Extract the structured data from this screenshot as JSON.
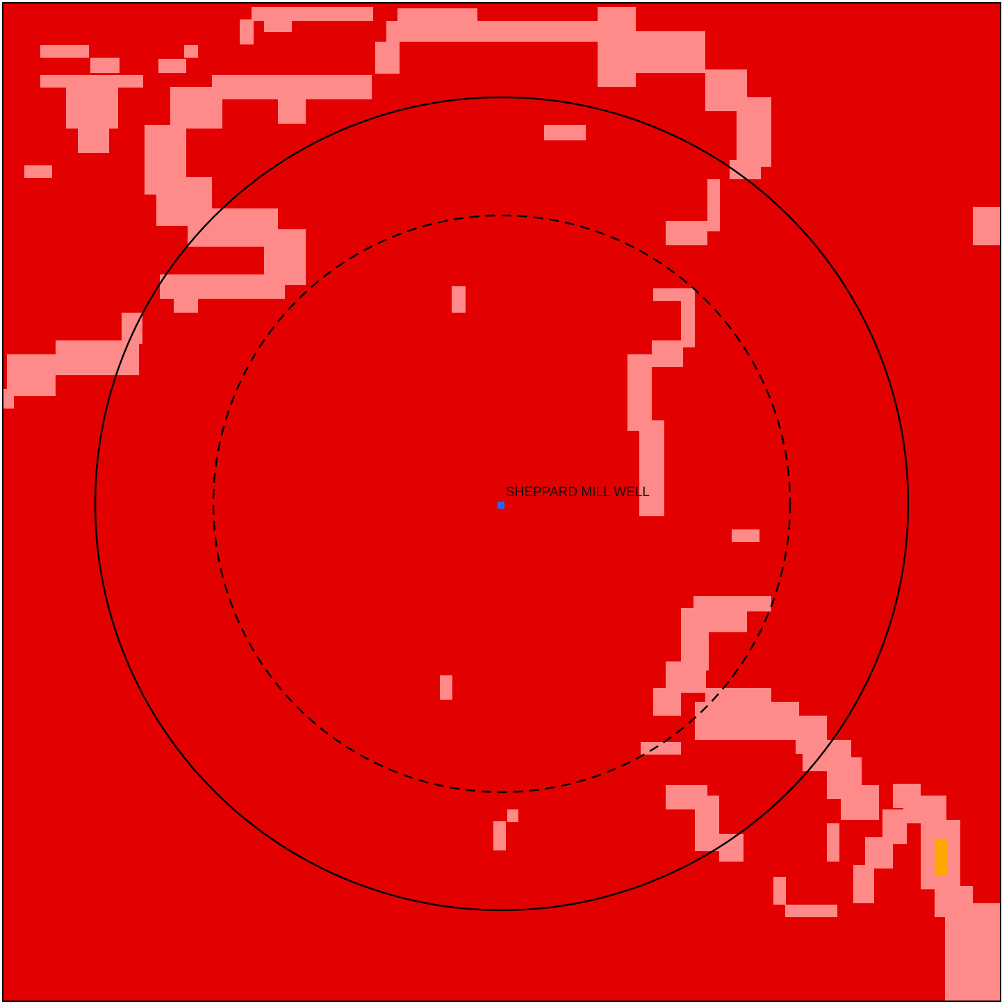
{
  "map": {
    "colors": {
      "background": "#e30000",
      "light_patch": "#ff8a8a",
      "accent_patch": "#ffa500",
      "well_marker": "#1a6cff",
      "rings": "#000000",
      "frame": "#000000"
    },
    "rings": [
      {
        "name": "outer-ring",
        "style": "solid"
      },
      {
        "name": "inner-ring",
        "style": "dashed"
      }
    ],
    "well": {
      "label": "SHEPPARD MILL WELL",
      "marker_icon": "well-marker-icon"
    }
  }
}
